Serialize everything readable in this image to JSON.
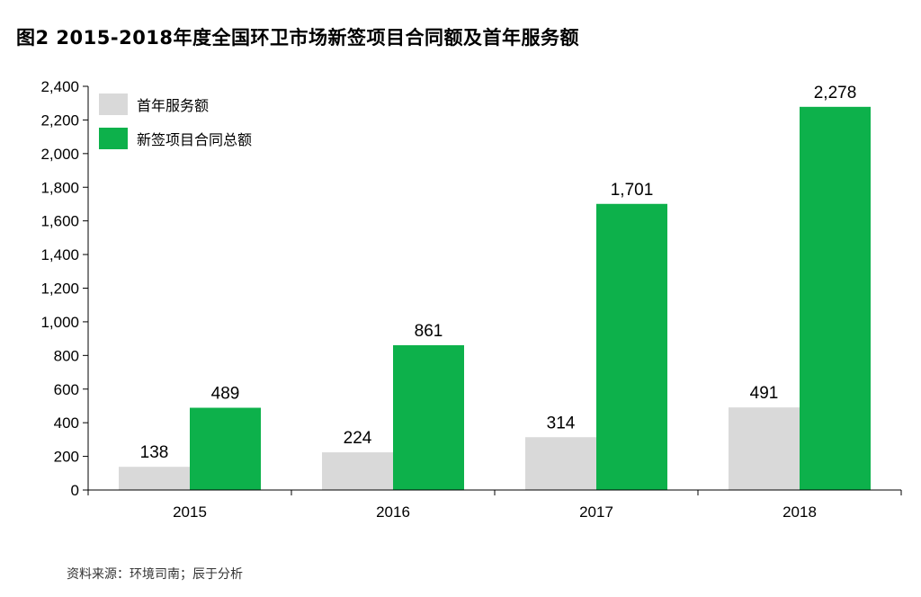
{
  "figure": {
    "title": "图2 2015-2018年度全国环卫市场新签项目合同额及首年服务额",
    "source": "资料来源：环境司南；辰于分析"
  },
  "colors": {
    "series_first_year": "#d9d9d9",
    "series_new_contract": "#0db14b",
    "axis": "#000000"
  },
  "chart_data": {
    "type": "bar",
    "categories": [
      "2015",
      "2016",
      "2017",
      "2018"
    ],
    "series": [
      {
        "name": "首年服务额",
        "values": [
          138,
          224,
          314,
          491
        ]
      },
      {
        "name": "新签项目合同总额",
        "values": [
          489,
          861,
          1701,
          2278
        ]
      }
    ],
    "value_labels": [
      [
        "138",
        "224",
        "314",
        "491"
      ],
      [
        "489",
        "861",
        "1,701",
        "2,278"
      ]
    ],
    "ylim": [
      0,
      2400
    ],
    "yticks": [
      0,
      200,
      400,
      600,
      800,
      1000,
      1200,
      1400,
      1600,
      1800,
      2000,
      2200,
      2400
    ],
    "ytick_labels": [
      "0",
      "200",
      "400",
      "600",
      "800",
      "1,000",
      "1,200",
      "1,400",
      "1,600",
      "1,800",
      "2,000",
      "2,200",
      "2,400"
    ],
    "grid": false,
    "legend_position": "top-left"
  }
}
